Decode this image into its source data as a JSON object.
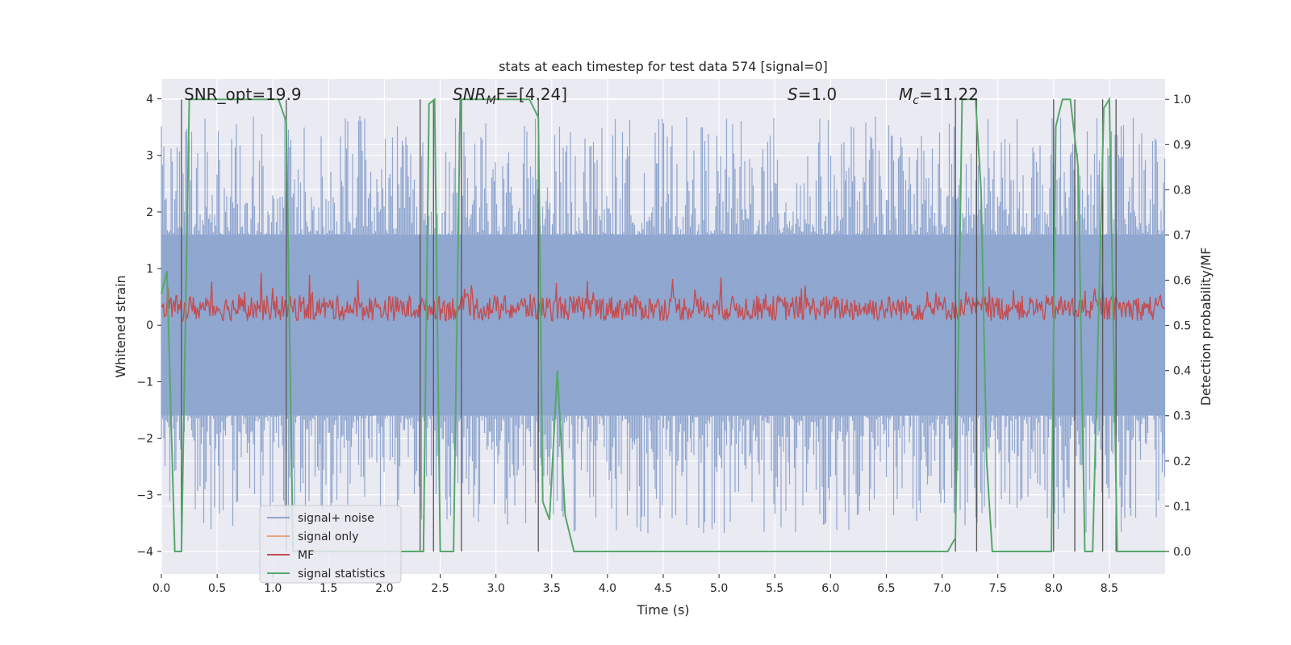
{
  "chart_data": {
    "type": "line",
    "title": "stats at each timestep for test data 574 [signal=0]",
    "xlabel": "Time (s)",
    "ylabel": "Whitened strain",
    "y2label": "Detection probability/MF",
    "xlim": [
      0.0,
      9.0
    ],
    "ylim": [
      -4.4,
      4.35
    ],
    "y2lim": [
      -0.05,
      1.045
    ],
    "xticks": [
      "0.0",
      "0.5",
      "1.0",
      "1.5",
      "2.0",
      "2.5",
      "3.0",
      "3.5",
      "4.0",
      "4.5",
      "5.0",
      "5.5",
      "6.0",
      "6.5",
      "7.0",
      "7.5",
      "8.0",
      "8.5"
    ],
    "xtick_values": [
      0,
      0.5,
      1,
      1.5,
      2,
      2.5,
      3,
      3.5,
      4,
      4.5,
      5,
      5.5,
      6,
      6.5,
      7,
      7.5,
      8,
      8.5
    ],
    "yticks": [
      "−4",
      "−3",
      "−2",
      "−1",
      "0",
      "1",
      "2",
      "3",
      "4"
    ],
    "ytick_values": [
      -4,
      -3,
      -2,
      -1,
      0,
      1,
      2,
      3,
      4
    ],
    "y2ticks": [
      "0.0",
      "0.1",
      "0.2",
      "0.3",
      "0.4",
      "0.5",
      "0.6",
      "0.7",
      "0.8",
      "0.9",
      "1.0"
    ],
    "y2tick_values": [
      0,
      0.1,
      0.2,
      0.3,
      0.4,
      0.5,
      0.6,
      0.7,
      0.8,
      0.9,
      1.0
    ],
    "annotations": {
      "snr_opt": "SNR_opt=19.9",
      "snr_mf_prefix": "SNR",
      "snr_mf_sub": "M",
      "snr_mf_rest": "F=[4.24]",
      "s_label": "S",
      "s_value": "=1.0",
      "mc_label": "M",
      "mc_sub": "c",
      "mc_value": "=11.22"
    },
    "legend": {
      "position": "lower-left",
      "entries": [
        {
          "label": "signal+ noise",
          "color": "#8fa6cf"
        },
        {
          "label": "signal only",
          "color": "#e8a381"
        },
        {
          "label": "MF",
          "color": "#c44e52"
        },
        {
          "label": "signal statistics",
          "color": "#55a868"
        }
      ]
    },
    "series": [
      {
        "name": "signal+ noise",
        "color": "#8fa6cf",
        "axis": "left",
        "style": "dense noise",
        "envelope": [
          -2.5,
          2.6
        ],
        "max": 3.7,
        "min": -3.7
      },
      {
        "name": "MF",
        "color": "#c44e52",
        "axis": "left",
        "style": "dense noise",
        "band": [
          0.0,
          0.7
        ],
        "max": 1.0
      },
      {
        "name": "signal statistics",
        "color": "#55a868",
        "axis": "right",
        "x": [
          0.0,
          0.05,
          0.12,
          0.18,
          0.25,
          0.3,
          1.0,
          1.05,
          1.12,
          1.18,
          2.3,
          2.35,
          2.4,
          2.45,
          2.5,
          2.62,
          2.68,
          2.75,
          3.3,
          3.38,
          3.42,
          3.48,
          3.55,
          3.62,
          3.7,
          7.05,
          7.12,
          7.18,
          7.3,
          7.35,
          7.4,
          7.45,
          7.98,
          8.02,
          8.08,
          8.15,
          8.22,
          8.28,
          8.35,
          8.45,
          8.5,
          8.57,
          8.62,
          9.0
        ],
        "y": [
          0.57,
          0.62,
          0.0,
          0.0,
          1.0,
          1.0,
          1.0,
          1.0,
          0.95,
          0.0,
          0.0,
          0.0,
          0.99,
          1.0,
          0.0,
          0.0,
          1.0,
          1.0,
          1.0,
          0.96,
          0.11,
          0.07,
          0.4,
          0.08,
          0.0,
          0.0,
          0.03,
          1.0,
          1.0,
          0.8,
          0.2,
          0.0,
          0.0,
          0.94,
          1.0,
          1.0,
          0.85,
          0.0,
          0.0,
          0.98,
          1.0,
          0.0,
          0.0,
          0.0
        ]
      },
      {
        "name": "markers",
        "color": "#555555",
        "axis": "right",
        "style": "vertical lines",
        "x": [
          0.18,
          1.12,
          2.32,
          2.44,
          2.69,
          3.38,
          7.12,
          7.31,
          8.0,
          8.19,
          8.44,
          8.56
        ]
      }
    ]
  }
}
